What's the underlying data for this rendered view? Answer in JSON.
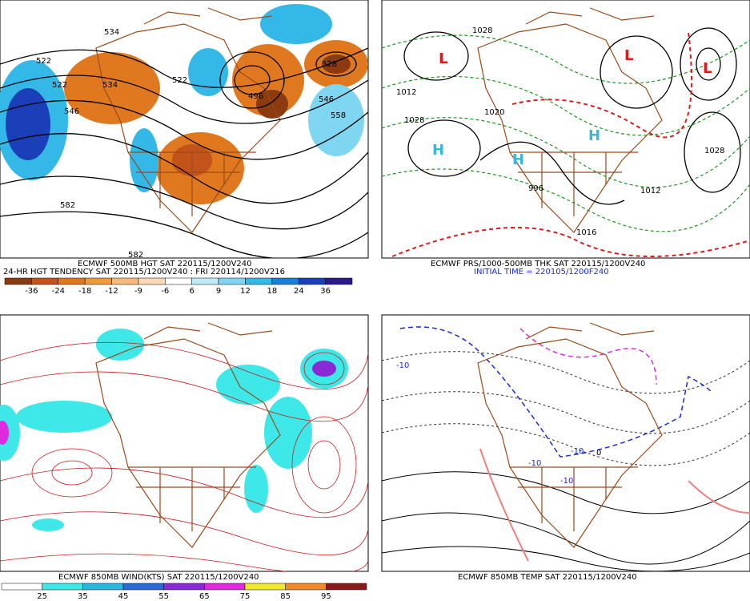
{
  "panels": [
    {
      "caption": "ECMWF 500MB HGT SAT 220115/1200V240",
      "subcaption": "24-HR HGT TENDENCY SAT 220115/1200V240 : FRI 220114/1200V216",
      "contour_labels": [
        "534",
        "522",
        "522",
        "546",
        "534",
        "522",
        "496",
        "546",
        "558",
        "528",
        "582",
        "582"
      ],
      "colorbar": {
        "labels": [
          -36,
          -24,
          -18,
          -12,
          -9,
          -6,
          6,
          9,
          12,
          18,
          24,
          36
        ],
        "colors": [
          "#8c3a0f",
          "#c2531a",
          "#e0781f",
          "#f09a3e",
          "#f6ba7a",
          "#fbd9b6",
          "#ffffff",
          "#bfeaf7",
          "#7fd6f0",
          "#34b8e8",
          "#1a7fd6",
          "#1a3fb8",
          "#2a1a8c"
        ]
      }
    },
    {
      "caption": "ECMWF PRS/1000-500MB THK SAT 220115/1200V240",
      "subcaption": "INITIAL TIME = 220105/1200F240",
      "contour_labels": [
        "1028",
        "1012",
        "1028",
        "1020",
        "1028",
        "996",
        "1012",
        "1016"
      ]
    },
    {
      "caption": "ECMWF 850MB WIND(KTS) SAT 220115/1200V240",
      "colorbar": {
        "labels": [
          25,
          35,
          45,
          55,
          65,
          75,
          85,
          95
        ],
        "colors": [
          "#ffffff",
          "#3fe8e8",
          "#2ab8e0",
          "#2a6ad6",
          "#8a2ad6",
          "#e02ae0",
          "#f0e82a",
          "#f08a2a",
          "#8a1a1a"
        ]
      }
    },
    {
      "caption": "ECMWF 850MB TEMP SAT 220115/1200V240",
      "contour_labels": [
        "-10",
        "-10",
        "-10",
        "-10",
        "0"
      ]
    }
  ]
}
